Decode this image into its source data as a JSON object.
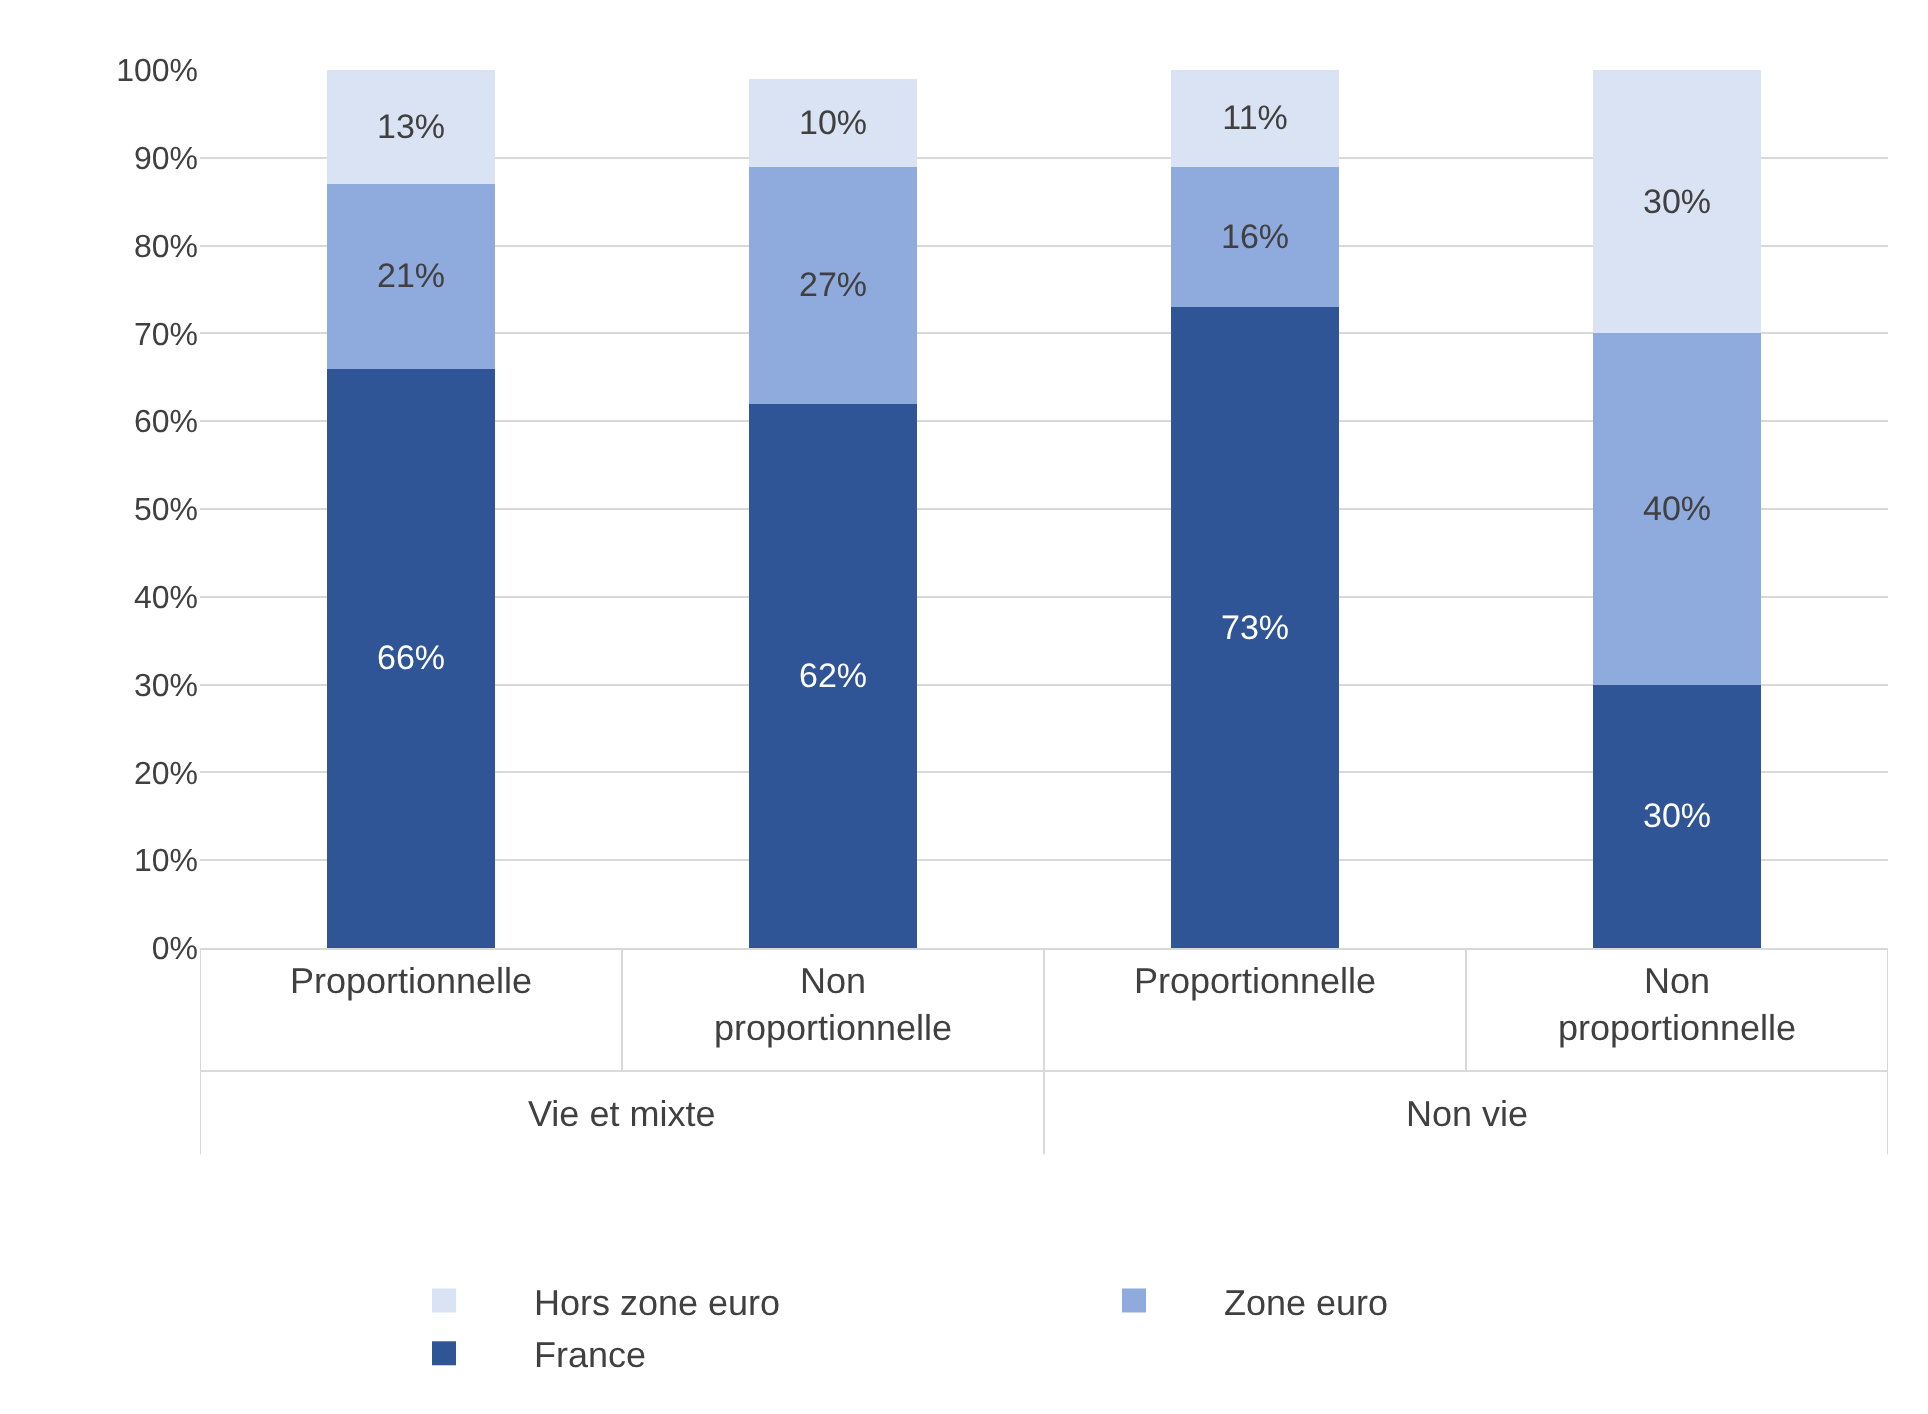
{
  "chart_data": {
    "type": "bar",
    "stacked": true,
    "categories": [
      "Proportionnelle",
      "Non proportionnelle",
      "Proportionnelle",
      "Non proportionnelle"
    ],
    "series": [
      {
        "name": "France",
        "color": "#2f5597",
        "values": [
          66,
          62,
          73,
          30
        ],
        "value_labels": [
          "66%",
          "62%",
          "73%",
          "30%"
        ]
      },
      {
        "name": "Zone euro",
        "color": "#8faadc",
        "values": [
          21,
          27,
          16,
          40
        ],
        "value_labels": [
          "21%",
          "27%",
          "16%",
          "40%"
        ]
      },
      {
        "name": "Hors zone euro",
        "color": "#dae3f3",
        "values": [
          13,
          10,
          11,
          30
        ],
        "value_labels": [
          "13%",
          "10%",
          "11%",
          "30%"
        ]
      }
    ],
    "ylim": [
      0,
      100
    ],
    "yticks": [
      {
        "value": 0,
        "label": "0%"
      },
      {
        "value": 10,
        "label": "10%"
      },
      {
        "value": 20,
        "label": "20%"
      },
      {
        "value": 30,
        "label": "30%"
      },
      {
        "value": 40,
        "label": "40%"
      },
      {
        "value": 50,
        "label": "50%"
      },
      {
        "value": 60,
        "label": "60%"
      },
      {
        "value": 70,
        "label": "70%"
      },
      {
        "value": 80,
        "label": "80%"
      },
      {
        "value": 90,
        "label": "90%"
      },
      {
        "value": 100,
        "label": "100%"
      }
    ],
    "annotations": [
      "Vie et mixte",
      "Non vie"
    ],
    "grid": "y",
    "legend": "bottom"
  }
}
